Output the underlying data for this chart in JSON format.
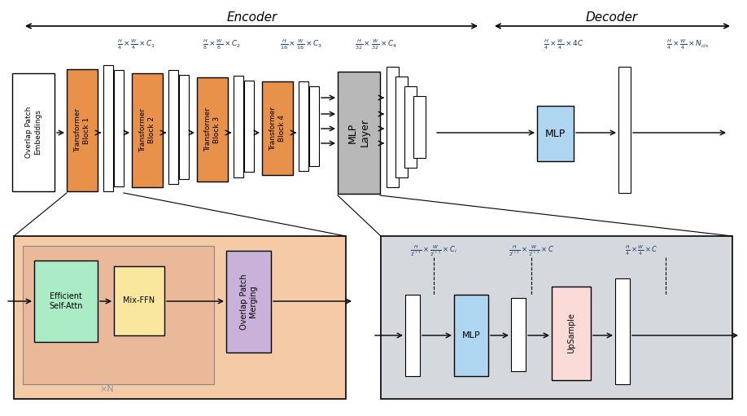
{
  "bg_color": "#ffffff",
  "title_encoder": "Encoder",
  "title_decoder": "Decoder",
  "transformer_color": "#E8914A",
  "mlp_layer_color": "#B8B8B8",
  "mlp_blue_color": "#AED6F1",
  "upsample_color": "#FADBD8",
  "overlap_merging_color": "#C9B1D9",
  "efficient_attn_color": "#ABEBC6",
  "mix_ffn_color": "#F9E79F",
  "encoder_expand_bg": "#F5CBA7",
  "encoder_expand_inner": "#EAB99A",
  "decoder_expand_bg": "#D5D8DC",
  "white_box_color": "#ffffff",
  "text_color_blue": "#1a3a6b",
  "arrow_color": "#111111",
  "dim_labels": [
    "$\\frac{H}{4}\\times\\frac{W}{4}\\times C_1$",
    "$\\frac{H}{8}\\times\\frac{W}{8}\\times C_2$",
    "$\\frac{H}{16}\\times\\frac{W}{16}\\times C_3$",
    "$\\frac{H}{32}\\times\\frac{W}{32}\\times C_4$",
    "$\\frac{H}{4}\\times\\frac{W}{4}\\times 4C$",
    "$\\frac{H}{4}\\times\\frac{W}{4}\\times N_{cls}$"
  ],
  "decoder_dim1": "$\\frac{H}{2^{i+1}}\\times\\frac{W}{2^{i+1}}\\times C_i$",
  "decoder_dim2": "$\\frac{H}{2^{i+1}}\\times\\frac{W}{2^{i+1}}\\times C$",
  "decoder_dim3": "$\\frac{H}{4}\\times\\frac{W}{4}\\times C$"
}
